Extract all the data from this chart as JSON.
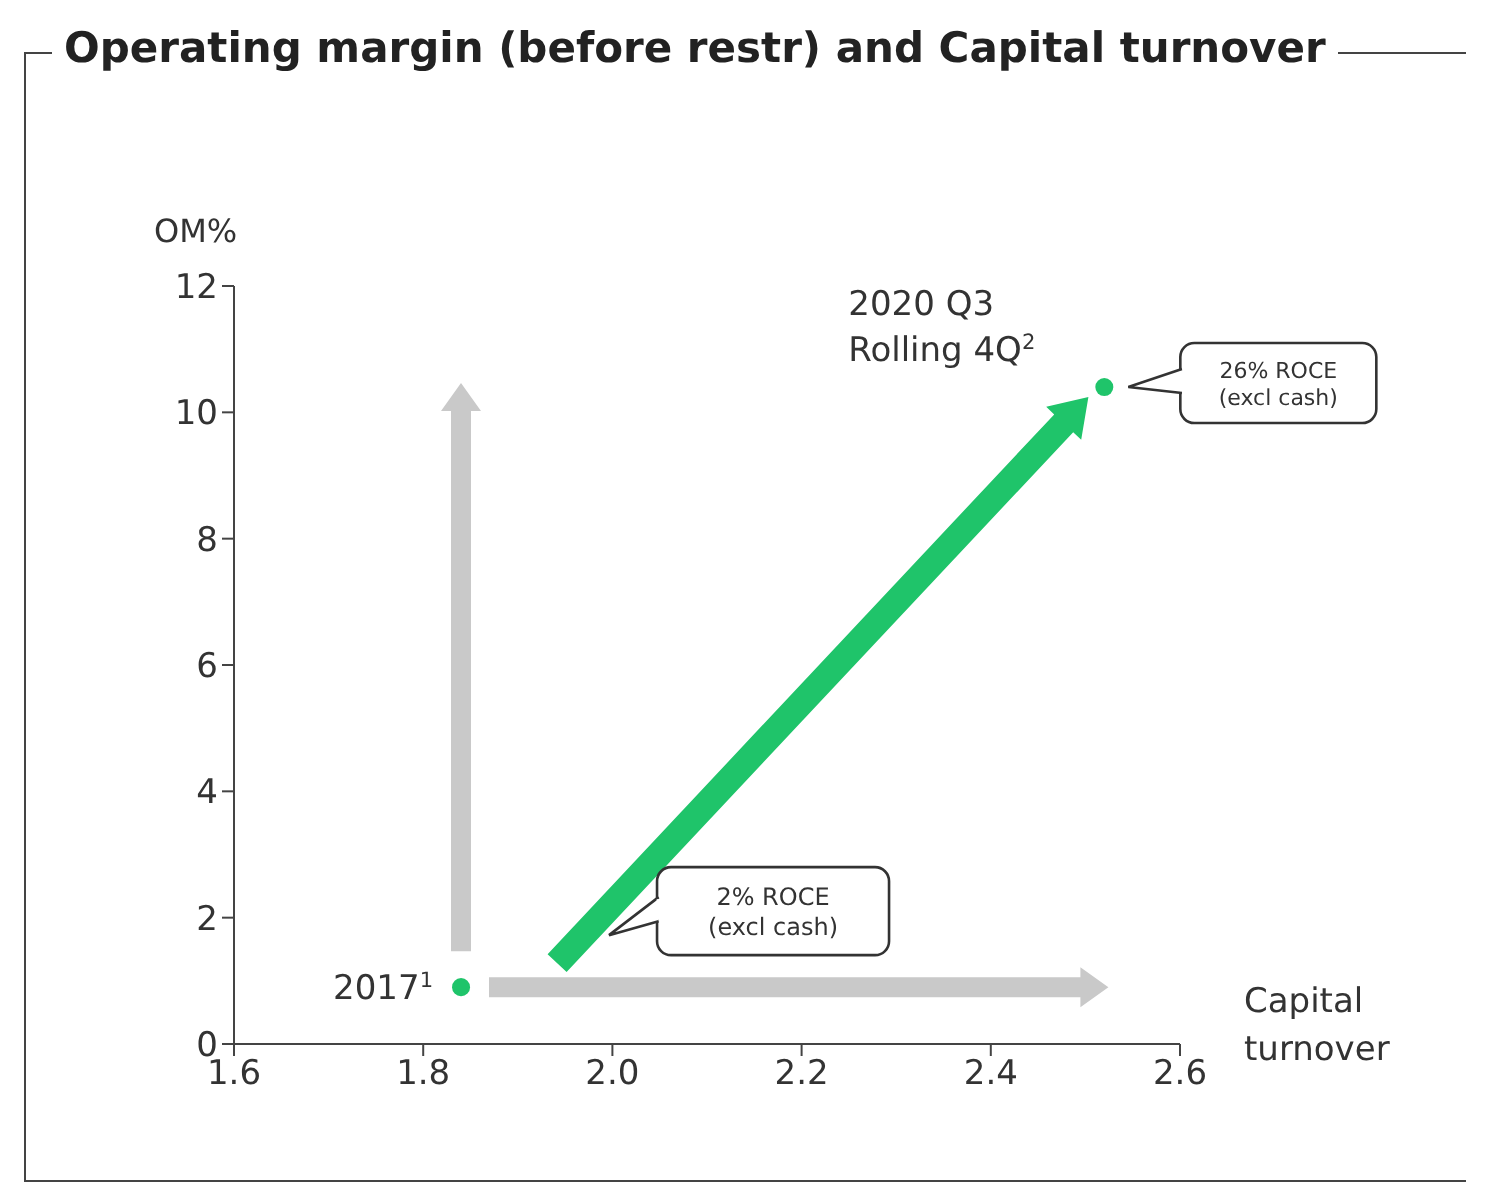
{
  "chart_data": {
    "type": "scatter",
    "title": "Operating margin (before restr) and Capital turnover",
    "xlabel": "Capital turnover",
    "ylabel": "OM%",
    "x": [
      1.84,
      2.52
    ],
    "values": [
      0.9,
      10.4
    ],
    "color": "#1fc46a",
    "marker": "circle",
    "xlim": [
      1.6,
      2.6
    ],
    "xticks": [
      1.6,
      1.8,
      {
        "value": 2,
        "label": "2.0"
      },
      2.2,
      2.4,
      2.6
    ],
    "ylim": [
      0,
      12
    ],
    "yticks": [
      0,
      2,
      4,
      6,
      8,
      10,
      12
    ],
    "annotations": [
      {
        "text": "2017$^{1}$",
        "x": 1.84,
        "y": 0.9
      },
      "2% ROCE\n(excl cash)",
      {
        "text": "2020 Q3\nRolling 4Q$^{2}$",
        "x": 2.52,
        "y": 10.4
      },
      "26% ROCE\n(excl cash)"
    ]
  }
}
